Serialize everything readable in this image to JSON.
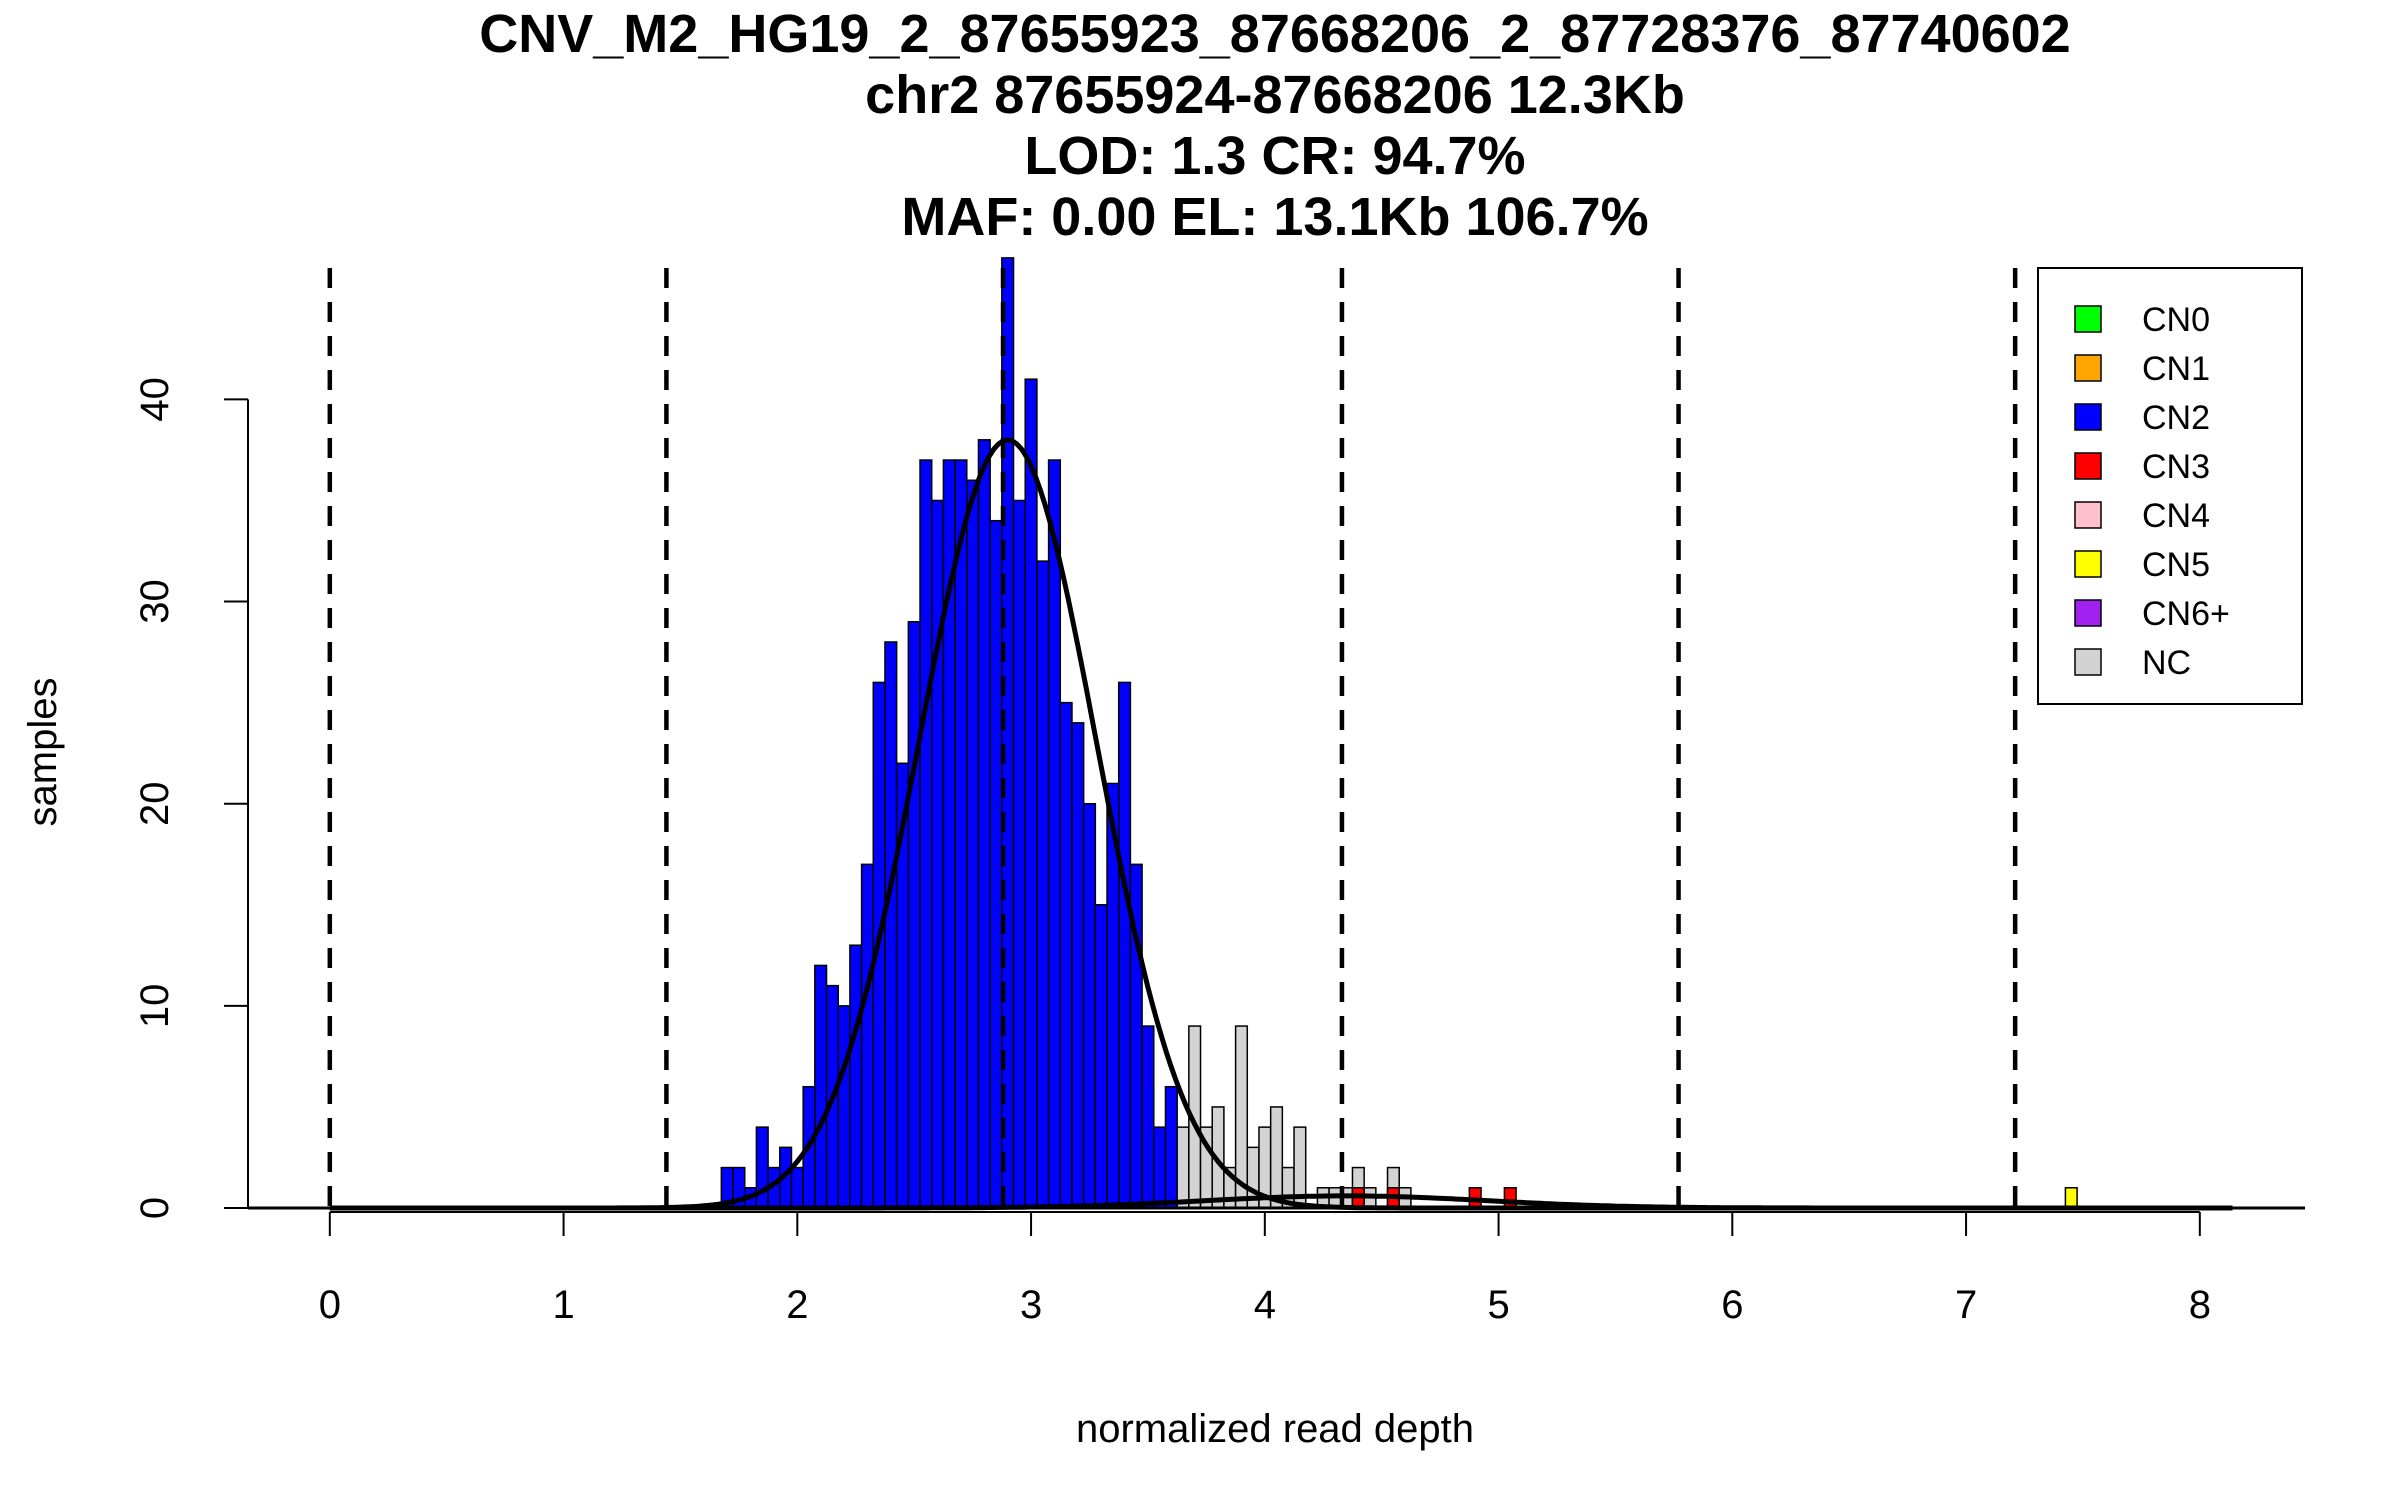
{
  "chart_data": {
    "type": "bar",
    "title_lines": [
      "CNV_M2_HG19_2_87655923_87668206_2_87728376_87740602",
      "chr2 87655924-87668206 12.3Kb",
      "LOD: 1.3 CR: 94.7%",
      "MAF: 0.00 EL: 13.1Kb 106.7%"
    ],
    "xlabel": "normalized read depth",
    "ylabel": "samples",
    "xlim": [
      -0.35,
      8.45
    ],
    "ylim": [
      0,
      46.5
    ],
    "x_ticks": [
      0,
      1,
      2,
      3,
      4,
      5,
      6,
      7,
      8
    ],
    "y_ticks": [
      0,
      10,
      20,
      30,
      40
    ],
    "bin_width": 0.05,
    "series": [
      {
        "name": "CN2",
        "color": "#0000ff",
        "bins": [
          [
            1.7,
            2
          ],
          [
            1.75,
            2
          ],
          [
            1.8,
            1
          ],
          [
            1.85,
            4
          ],
          [
            1.9,
            2
          ],
          [
            1.95,
            3
          ],
          [
            2.0,
            2
          ],
          [
            2.05,
            6
          ],
          [
            2.1,
            12
          ],
          [
            2.15,
            11
          ],
          [
            2.2,
            10
          ],
          [
            2.25,
            13
          ],
          [
            2.3,
            17
          ],
          [
            2.35,
            26
          ],
          [
            2.4,
            28
          ],
          [
            2.45,
            22
          ],
          [
            2.5,
            29
          ],
          [
            2.55,
            37
          ],
          [
            2.6,
            35
          ],
          [
            2.65,
            37
          ],
          [
            2.7,
            37
          ],
          [
            2.75,
            36
          ],
          [
            2.8,
            38
          ],
          [
            2.85,
            34
          ],
          [
            2.9,
            47
          ],
          [
            2.95,
            35
          ],
          [
            3.0,
            41
          ],
          [
            3.05,
            32
          ],
          [
            3.1,
            37
          ],
          [
            3.15,
            25
          ],
          [
            3.2,
            24
          ],
          [
            3.25,
            20
          ],
          [
            3.3,
            15
          ],
          [
            3.35,
            21
          ],
          [
            3.4,
            26
          ],
          [
            3.45,
            17
          ],
          [
            3.5,
            9
          ],
          [
            3.55,
            4
          ],
          [
            3.6,
            6
          ],
          [
            3.65,
            2
          ],
          [
            3.7,
            1
          ],
          [
            3.75,
            1
          ],
          [
            3.8,
            1
          ],
          [
            4.0,
            1
          ]
        ]
      },
      {
        "name": "NC",
        "color": "#d3d3d3",
        "bins": [
          [
            3.65,
            4
          ],
          [
            3.7,
            9
          ],
          [
            3.75,
            4
          ],
          [
            3.8,
            5
          ],
          [
            3.85,
            2
          ],
          [
            3.9,
            9
          ],
          [
            3.95,
            3
          ],
          [
            4.0,
            4
          ],
          [
            4.05,
            5
          ],
          [
            4.1,
            2
          ],
          [
            4.15,
            4
          ],
          [
            4.25,
            1
          ],
          [
            4.3,
            1
          ],
          [
            4.35,
            1
          ],
          [
            4.4,
            2
          ],
          [
            4.45,
            1
          ],
          [
            4.55,
            2
          ],
          [
            4.6,
            1
          ]
        ]
      },
      {
        "name": "CN3",
        "color": "#ff0000",
        "bins": [
          [
            4.4,
            1
          ],
          [
            4.55,
            1
          ],
          [
            4.9,
            1
          ],
          [
            5.05,
            1
          ]
        ]
      },
      {
        "name": "CN5",
        "color": "#ffff00",
        "bins": [
          [
            7.45,
            1
          ]
        ]
      }
    ],
    "density_curves": [
      {
        "name": "CN2 fit",
        "mean": 2.9,
        "sd": 0.38,
        "scale": 38,
        "color": "#000000"
      },
      {
        "name": "CN3 fit",
        "mean": 4.35,
        "sd": 0.6,
        "scale": 0.6,
        "color": "#000000"
      }
    ],
    "vertical_lines": [
      0,
      1.44,
      2.88,
      4.33,
      5.77,
      7.21
    ],
    "legend": {
      "position": "top-right",
      "items": [
        {
          "label": "CN0",
          "color": "#00ff00"
        },
        {
          "label": "CN1",
          "color": "#ffa500"
        },
        {
          "label": "CN2",
          "color": "#0000ff"
        },
        {
          "label": "CN3",
          "color": "#ff0000"
        },
        {
          "label": "CN4",
          "color": "#ffc0cb"
        },
        {
          "label": "CN5",
          "color": "#ffff00"
        },
        {
          "label": "CN6+",
          "color": "#a020f0"
        },
        {
          "label": "NC",
          "color": "#d3d3d3"
        }
      ]
    }
  }
}
